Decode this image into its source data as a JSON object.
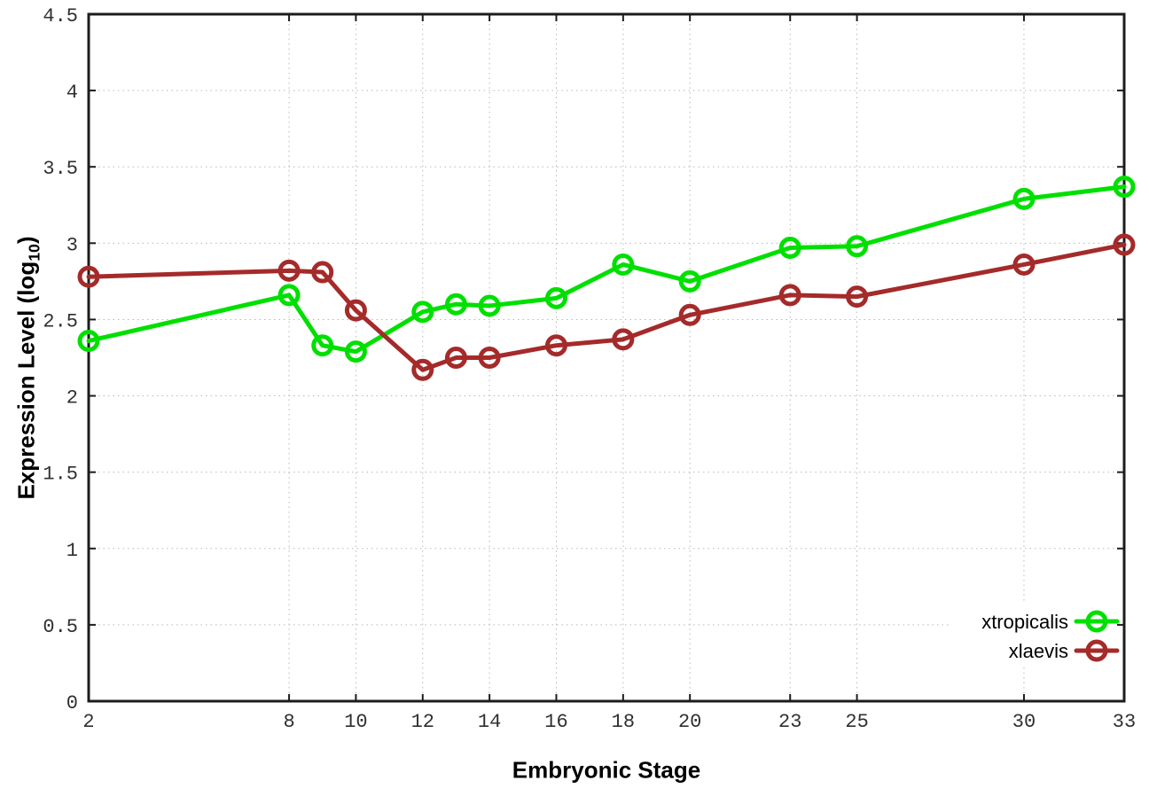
{
  "chart_data": {
    "type": "line",
    "title": "",
    "xlabel": "Embryonic Stage",
    "ylabel_parts": {
      "base": "Expression Level (log",
      "sub": "10",
      "close": ")"
    },
    "x": [
      2,
      8,
      9,
      10,
      12,
      13,
      14,
      16,
      18,
      20,
      23,
      25,
      30,
      33
    ],
    "x_tick_labels": [
      2,
      8,
      10,
      12,
      14,
      16,
      18,
      20,
      23,
      25,
      30,
      33
    ],
    "xlim": [
      2,
      33
    ],
    "y_tick_labels": [
      0,
      0.5,
      1,
      1.5,
      2,
      2.5,
      3,
      3.5,
      4,
      4.5
    ],
    "ylim": [
      0,
      4.5
    ],
    "grid": true,
    "legend_position": "bottom-right",
    "series": [
      {
        "name": "xtropicalis",
        "color": "#00e000",
        "values": [
          2.36,
          2.66,
          2.33,
          2.29,
          2.55,
          2.6,
          2.59,
          2.64,
          2.86,
          2.75,
          2.97,
          2.98,
          3.29,
          3.37
        ]
      },
      {
        "name": "xlaevis",
        "color": "#a52a2a",
        "values": [
          2.78,
          2.82,
          2.81,
          2.56,
          2.17,
          2.25,
          2.25,
          2.33,
          2.37,
          2.53,
          2.66,
          2.65,
          2.86,
          2.99
        ]
      }
    ]
  },
  "style_colors": {
    "grid": "#b8b8b8",
    "border": "#1c1c1c",
    "tick_text": "#303030",
    "legend_text": "#000000",
    "background": "#ffffff"
  }
}
